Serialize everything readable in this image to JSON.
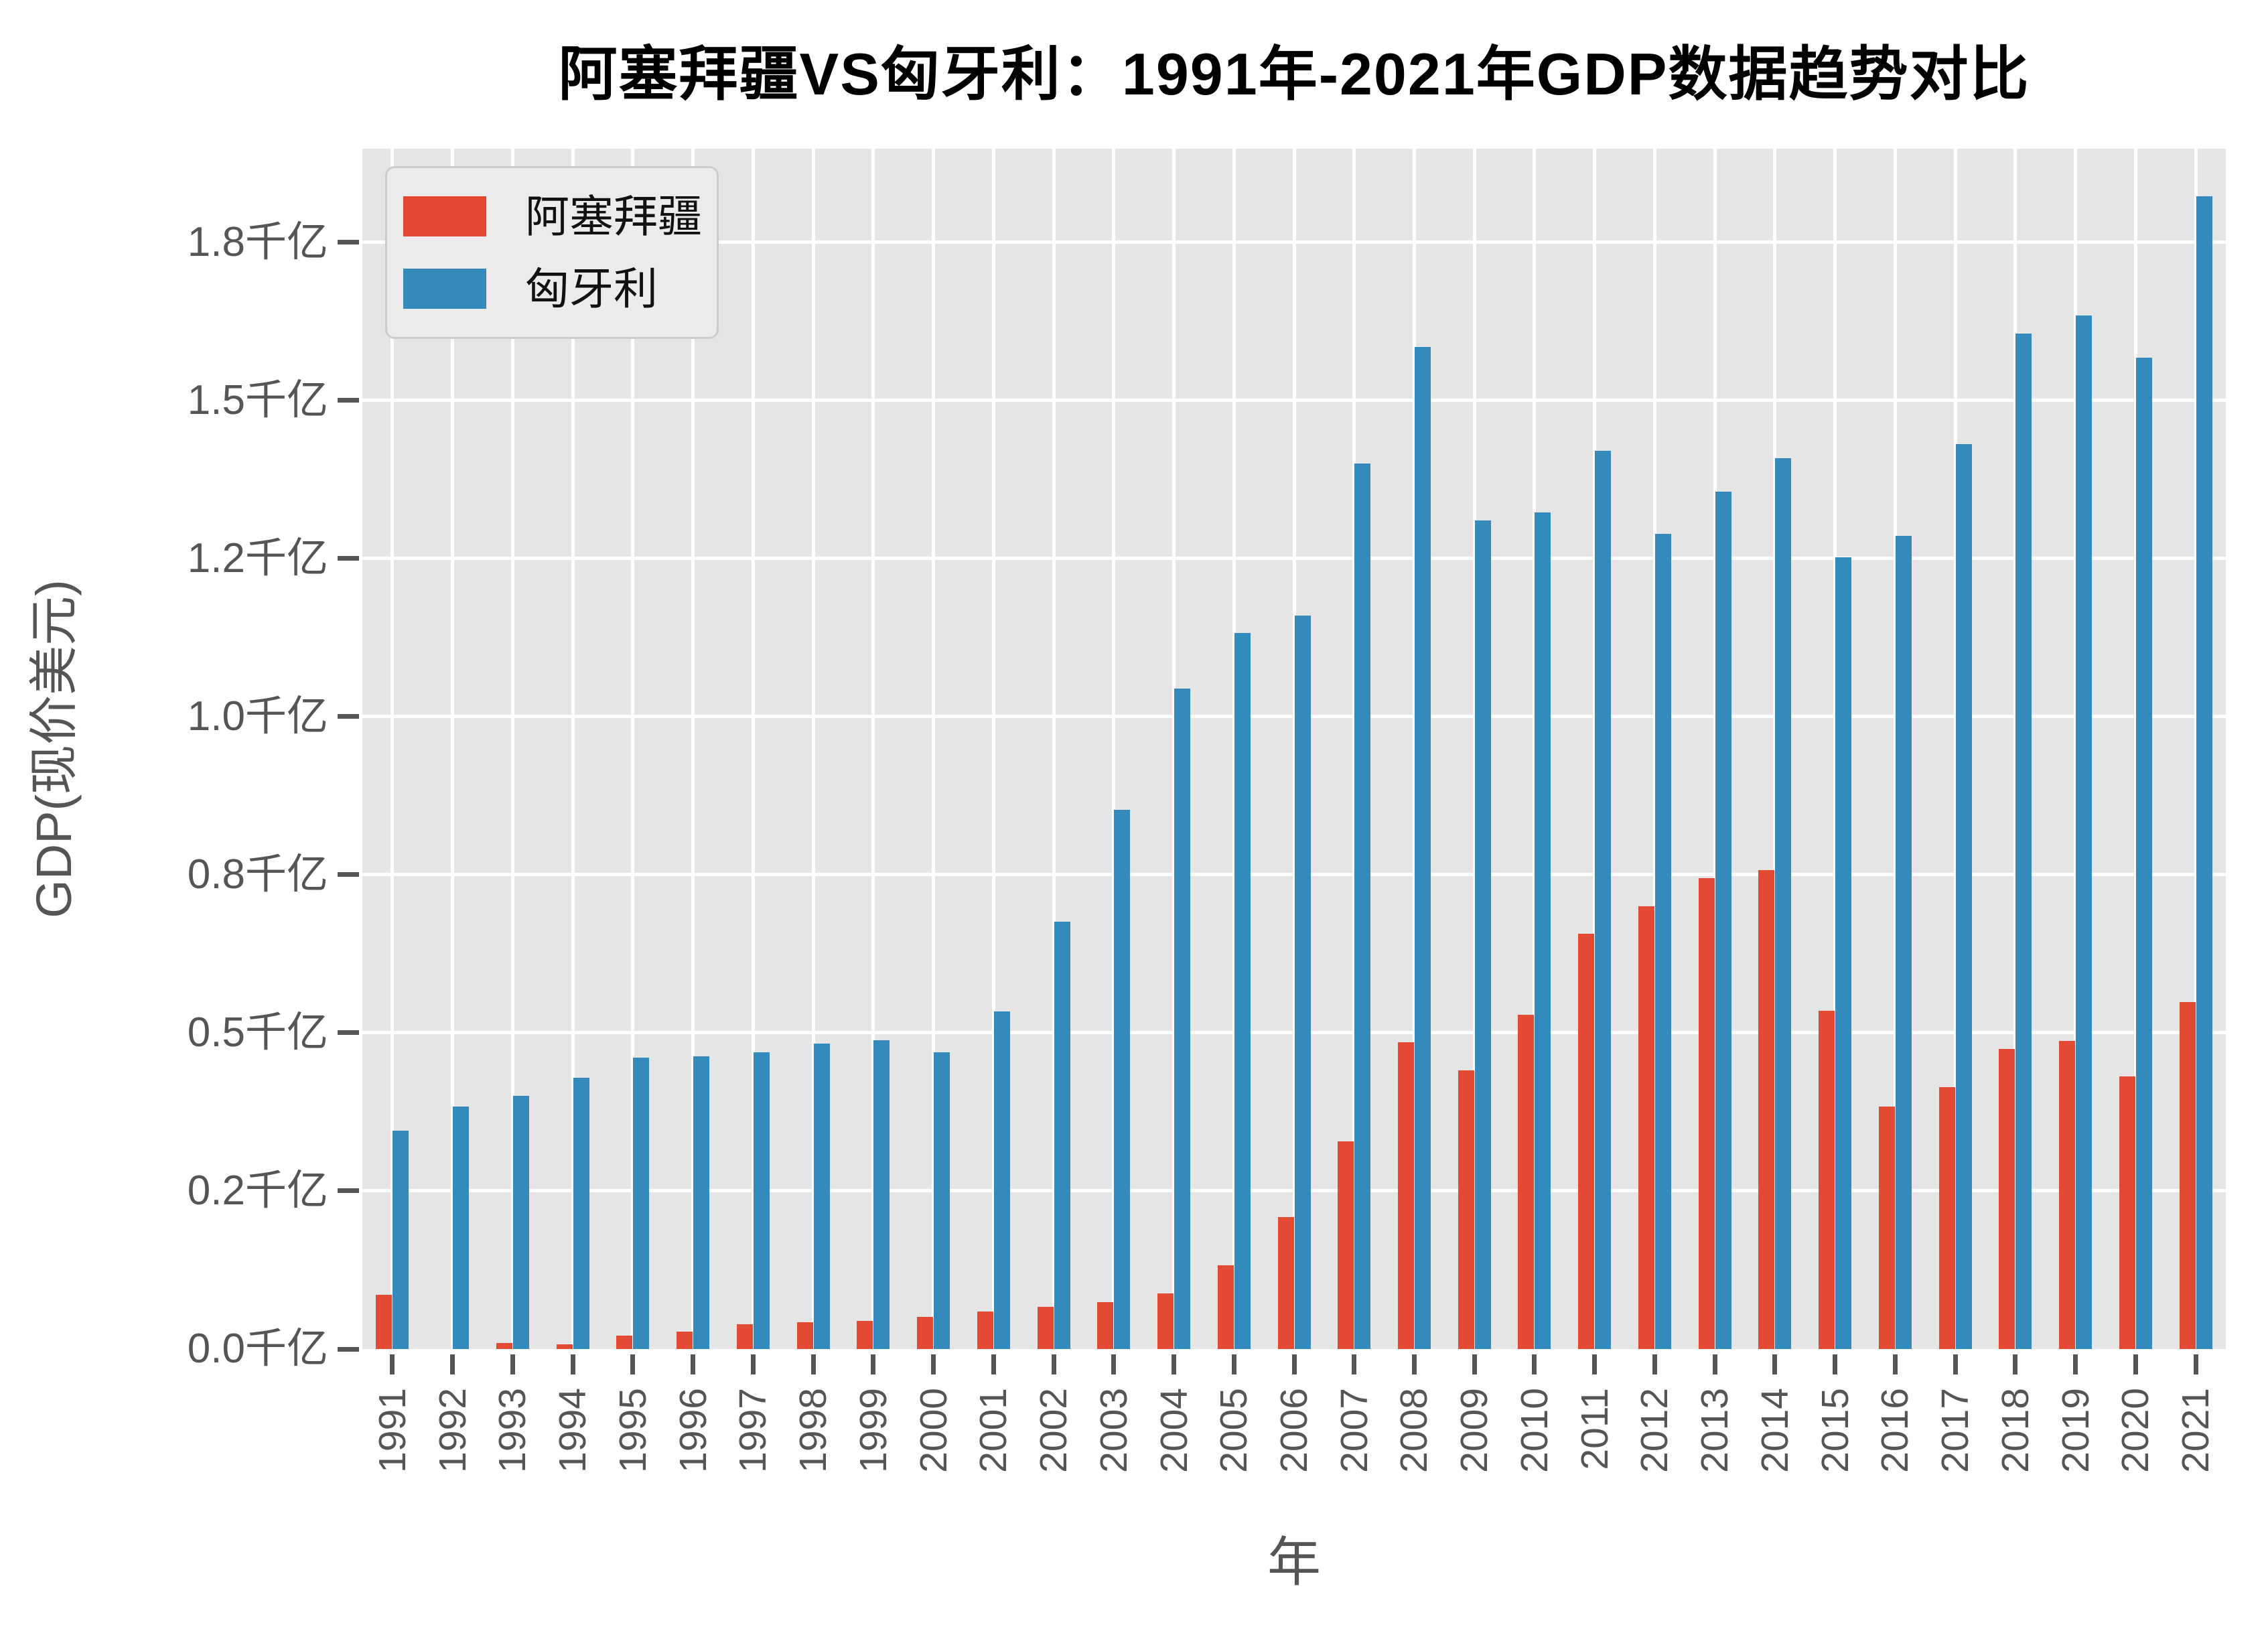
{
  "title": "阿塞拜疆VS匈牙利：1991年-2021年GDP数据趋势对比",
  "legend": {
    "items": [
      {
        "label": "阿塞拜疆",
        "color": "#E24A33"
      },
      {
        "label": "匈牙利",
        "color": "#348ABD"
      }
    ]
  },
  "axes": {
    "x_label": "年",
    "y_label": "GDP(现价美元)",
    "y_ticks": [
      {
        "value_qianyi": 0.0,
        "label": "0.0千亿"
      },
      {
        "value_qianyi": 0.25,
        "label": "0.2千亿"
      },
      {
        "value_qianyi": 0.5,
        "label": "0.5千亿"
      },
      {
        "value_qianyi": 0.75,
        "label": "0.8千亿"
      },
      {
        "value_qianyi": 1.0,
        "label": "1.0千亿"
      },
      {
        "value_qianyi": 1.25,
        "label": "1.2千亿"
      },
      {
        "value_qianyi": 1.5,
        "label": "1.5千亿"
      },
      {
        "value_qianyi": 1.75,
        "label": "1.8千亿"
      }
    ]
  },
  "chart_data": {
    "type": "bar",
    "title": "阿塞拜疆VS匈牙利：1991年-2021年GDP数据趋势对比",
    "xlabel": "年",
    "ylabel": "GDP(现价美元)",
    "unit": "十亿美元 (billions of current US$), 1千亿 = 100 billion",
    "categories": [
      "1991",
      "1992",
      "1993",
      "1994",
      "1995",
      "1996",
      "1997",
      "1998",
      "1999",
      "2000",
      "2001",
      "2002",
      "2003",
      "2004",
      "2005",
      "2006",
      "2007",
      "2008",
      "2009",
      "2010",
      "2011",
      "2012",
      "2013",
      "2014",
      "2015",
      "2016",
      "2017",
      "2018",
      "2019",
      "2020",
      "2021"
    ],
    "series": [
      {
        "name": "阿塞拜疆",
        "key": "azerbaijan",
        "color": "#E24A33",
        "values_billion": [
          8.6,
          null,
          1.0,
          0.7,
          2.1,
          2.8,
          3.9,
          4.2,
          4.4,
          5.1,
          5.9,
          6.7,
          7.4,
          8.8,
          13.2,
          20.9,
          32.8,
          48.5,
          44.1,
          52.9,
          65.7,
          70.0,
          74.5,
          75.7,
          53.5,
          38.3,
          41.4,
          47.5,
          48.7,
          43.1,
          54.9
        ]
      },
      {
        "name": "匈牙利",
        "key": "hungary",
        "color": "#348ABD",
        "values_billion": [
          34.5,
          38.3,
          40.0,
          42.9,
          46.1,
          46.3,
          46.9,
          48.3,
          48.8,
          46.9,
          53.4,
          67.6,
          85.3,
          104.4,
          113.2,
          116.0,
          140.0,
          158.5,
          131.0,
          132.3,
          142.0,
          128.9,
          135.6,
          140.9,
          125.2,
          128.6,
          143.1,
          160.6,
          163.4,
          156.8,
          182.3
        ]
      }
    ],
    "ylim_billion": [
      0,
      189.8
    ],
    "y_tick_values_billion": [
      0,
      25,
      50,
      75,
      100,
      125,
      150,
      175
    ],
    "y_tick_labels": [
      "0.0千亿",
      "0.2千亿",
      "0.5千亿",
      "0.8千亿",
      "1.0千亿",
      "1.2千亿",
      "1.5千亿",
      "1.8千亿"
    ],
    "grid": true,
    "legend_position": "upper left",
    "plot_background": "#E5E5E5",
    "grid_color": "#FFFFFF",
    "tick_text_color": "#555555"
  }
}
